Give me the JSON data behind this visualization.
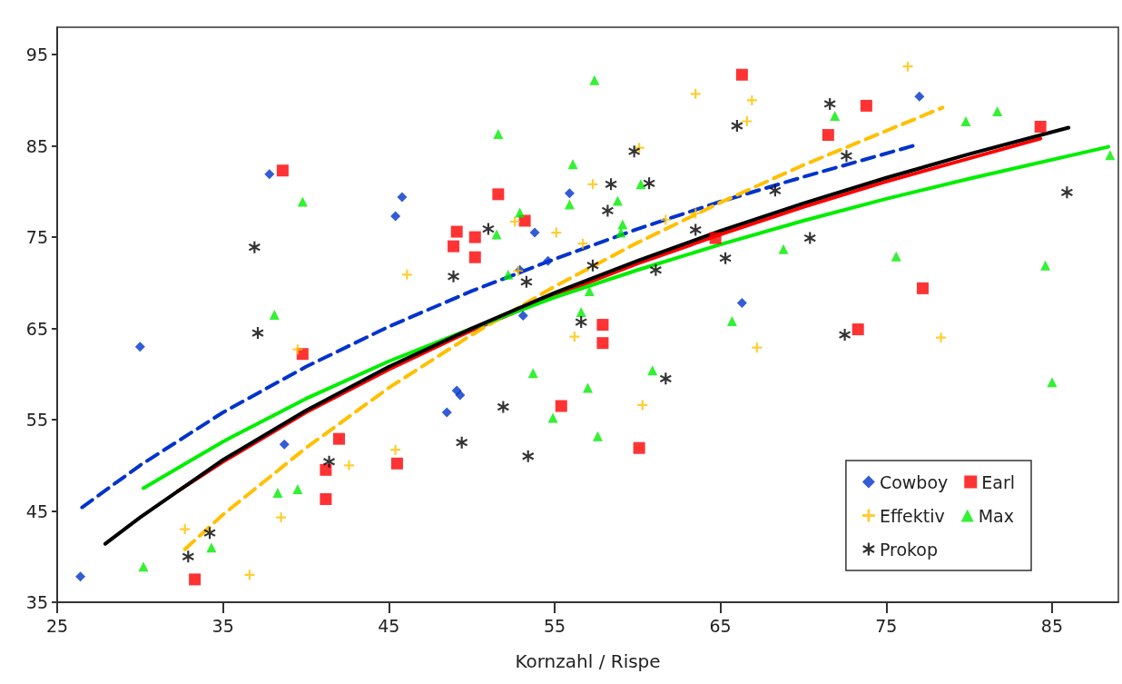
{
  "chart_data": {
    "type": "scatter",
    "xlabel": "Kornzahl / Rispe",
    "xlim": [
      25,
      89
    ],
    "ylim": [
      35,
      98
    ],
    "xticks": [
      25,
      35,
      45,
      55,
      65,
      75,
      85
    ],
    "yticks": [
      35,
      45,
      55,
      65,
      75,
      85,
      95
    ],
    "grid": false,
    "legend": "bottom right",
    "series": [
      {
        "name": "Cowboy",
        "color": "#0033cc",
        "marker": "diamond",
        "x": [
          30.0,
          26.4,
          37.8,
          45.4,
          45.8,
          38.7,
          48.5,
          49.1,
          49.3,
          52.9,
          53.1,
          53.8,
          54.6,
          55.9,
          66.3,
          77.0
        ],
        "values": [
          63.0,
          37.8,
          81.9,
          77.3,
          79.4,
          52.3,
          55.8,
          58.2,
          57.7,
          71.4,
          66.4,
          75.5,
          72.4,
          79.8,
          67.8,
          90.4
        ]
      },
      {
        "name": "Earl",
        "color": "#ff0000",
        "marker": "square",
        "x": [
          38.6,
          66.3,
          51.6,
          53.2,
          49.1,
          50.2,
          48.9,
          50.2,
          64.7,
          57.9,
          57.9,
          55.4,
          60.1,
          39.8,
          42.0,
          41.2,
          45.5,
          41.2,
          33.3,
          73.8,
          71.5,
          84.3,
          77.2,
          73.3
        ],
        "values": [
          82.3,
          92.8,
          79.7,
          76.8,
          75.6,
          75.0,
          74.0,
          72.8,
          74.9,
          65.4,
          63.4,
          56.5,
          51.9,
          62.2,
          52.9,
          49.5,
          50.2,
          46.3,
          37.5,
          89.4,
          86.2,
          87.1,
          69.4,
          64.9
        ]
      },
      {
        "name": "Effektiv",
        "color": "#ffc000",
        "marker": "cross",
        "x": [
          63.5,
          66.9,
          66.6,
          60.1,
          57.3,
          52.6,
          55.1,
          56.7,
          46.1,
          61.7,
          63.5,
          52.8,
          56.2,
          60.3,
          67.2,
          39.5,
          45.4,
          42.6,
          38.5,
          32.7,
          36.6,
          76.3,
          78.3
        ],
        "values": [
          90.7,
          90.0,
          87.7,
          84.8,
          80.8,
          76.7,
          75.5,
          74.3,
          70.9,
          76.9,
          77.6,
          71.3,
          64.1,
          56.6,
          62.9,
          62.7,
          51.7,
          50.0,
          44.3,
          43.0,
          38.0,
          93.7,
          64.0
        ]
      },
      {
        "name": "Max",
        "color": "#00ee00",
        "marker": "triangle",
        "x": [
          57.4,
          51.6,
          56.1,
          55.9,
          52.9,
          58.8,
          60.2,
          59.1,
          59.0,
          51.5,
          52.2,
          57.1,
          56.6,
          65.7,
          53.7,
          57.0,
          54.9,
          57.6,
          60.9,
          39.8,
          38.1,
          38.3,
          39.5,
          34.3,
          30.2,
          71.9,
          79.8,
          81.7,
          88.5,
          68.8,
          75.6,
          84.6,
          85.0
        ],
        "values": [
          92.2,
          86.3,
          83.0,
          78.6,
          77.7,
          79.0,
          80.8,
          76.4,
          75.5,
          75.3,
          70.9,
          69.1,
          66.8,
          65.8,
          60.1,
          58.5,
          55.2,
          53.2,
          60.4,
          78.9,
          66.5,
          47.0,
          47.4,
          41.0,
          38.9,
          88.3,
          87.7,
          88.8,
          84.0,
          73.7,
          72.9,
          71.9,
          59.1
        ]
      },
      {
        "name": "Prokop",
        "color": "#000000",
        "marker": "star",
        "x": [
          36.9,
          66.0,
          59.8,
          58.4,
          60.7,
          58.2,
          51.0,
          48.9,
          53.3,
          57.3,
          63.5,
          65.3,
          61.1,
          56.6,
          71.6,
          72.6,
          68.3,
          85.9,
          70.4,
          72.5,
          61.7,
          51.9,
          49.4,
          53.4,
          37.1,
          41.4,
          34.2,
          32.9
        ],
        "values": [
          73.9,
          87.2,
          84.4,
          80.8,
          80.9,
          77.9,
          75.9,
          70.7,
          70.1,
          71.9,
          75.8,
          72.7,
          71.4,
          65.7,
          89.6,
          83.9,
          80.1,
          79.9,
          74.9,
          64.3,
          59.5,
          56.4,
          52.5,
          51.0,
          64.5,
          50.4,
          42.6,
          40.0
        ]
      },
      {
        "type": "line",
        "color": "#0033cc",
        "line_style": "dashed",
        "marker": "none",
        "x": [
          26.5,
          30,
          35,
          40,
          45,
          50,
          55,
          60,
          65,
          70,
          76.6
        ],
        "values": [
          45.4,
          50.0,
          55.8,
          60.8,
          65.2,
          69.1,
          72.6,
          75.9,
          78.9,
          81.6,
          85.0
        ]
      },
      {
        "type": "line",
        "color": "#ff0000",
        "line_style": "solid",
        "marker": "none",
        "x": [
          32.3,
          35,
          40,
          45,
          50,
          55,
          60,
          65,
          70,
          75,
          84.3
        ],
        "values": [
          47.2,
          50.4,
          55.8,
          60.5,
          64.8,
          68.6,
          72.1,
          75.3,
          78.3,
          81.1,
          85.8
        ]
      },
      {
        "type": "line",
        "color": "#ffc000",
        "line_style": "dashed",
        "marker": "none",
        "x": [
          32.7,
          35,
          40,
          45,
          50,
          55,
          60,
          65,
          70,
          78.4
        ],
        "values": [
          40.8,
          44.6,
          51.9,
          58.5,
          64.3,
          69.6,
          74.4,
          78.8,
          82.9,
          89.2
        ]
      },
      {
        "type": "line",
        "color": "#00ee00",
        "line_style": "solid",
        "marker": "none",
        "x": [
          30.2,
          35,
          40,
          45,
          50,
          55,
          60,
          65,
          70,
          75,
          80,
          88.4
        ],
        "values": [
          47.5,
          52.6,
          57.3,
          61.4,
          65.0,
          68.4,
          71.4,
          74.2,
          76.8,
          79.2,
          81.4,
          84.9
        ]
      },
      {
        "type": "line",
        "color": "#000000",
        "line_style": "solid",
        "marker": "none",
        "x": [
          27.9,
          30,
          35,
          40,
          45,
          50,
          55,
          60,
          65,
          70,
          75,
          80,
          86
        ],
        "values": [
          41.4,
          44.3,
          50.6,
          56.0,
          60.8,
          65.0,
          68.9,
          72.4,
          75.7,
          78.7,
          81.5,
          84.1,
          87.0
        ]
      }
    ]
  }
}
